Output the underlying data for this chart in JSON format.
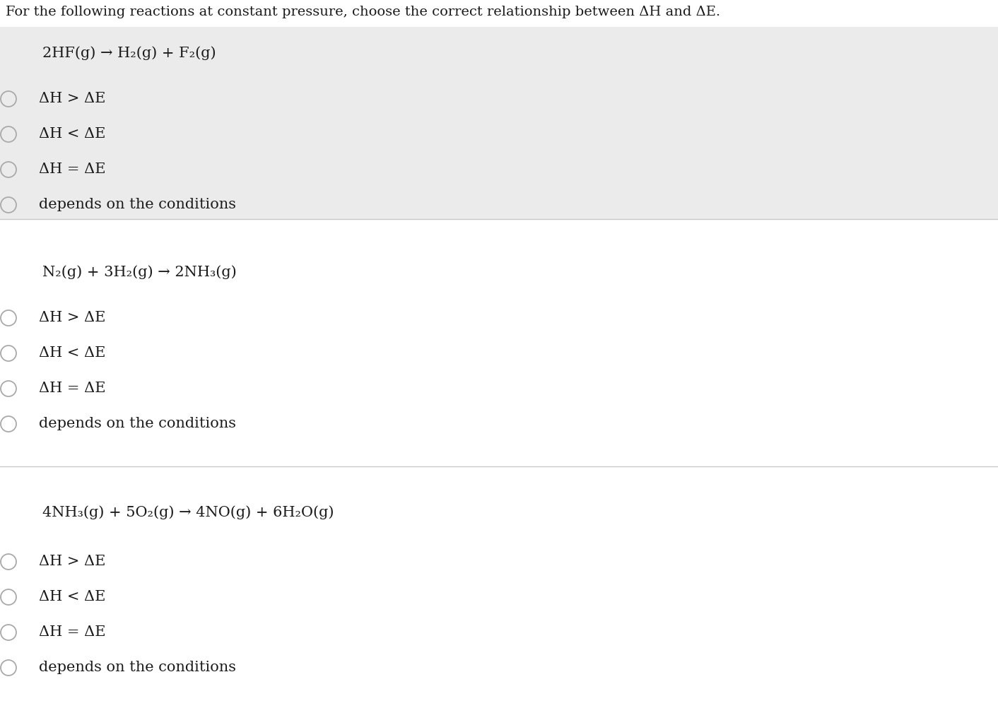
{
  "title": "For the following reactions at constant pressure, choose the correct relationship between ΔH and ΔE.",
  "title_fontsize": 14,
  "bg_white": "#ffffff",
  "bg_gray": "#ebebeb",
  "text_color": "#1a1a1a",
  "separator_color": "#cccccc",
  "circle_color": "#aaaaaa",
  "reactions": [
    {
      "equation": "2HF(g) → H₂(g) + F₂(g)",
      "options": [
        "ΔH > ΔE",
        "ΔH < ΔE",
        "ΔH = ΔE",
        "depends on the conditions"
      ],
      "bg": "#ebebeb"
    },
    {
      "equation": "N₂(g) + 3H₂(g) → 2NH₃(g)",
      "options": [
        "ΔH > ΔE",
        "ΔH < ΔE",
        "ΔH = ΔE",
        "depends on the conditions"
      ],
      "bg": "#ffffff"
    },
    {
      "equation": "4NH₃(g) + 5O₂(g) → 4NO(g) + 6H₂O(g)",
      "options": [
        "ΔH > ΔE",
        "ΔH < ΔE",
        "ΔH = ΔE",
        "depends on the conditions"
      ],
      "bg": "#ffffff"
    }
  ],
  "font_family": "DejaVu Serif",
  "font_size_eq": 15,
  "font_size_opt": 15,
  "font_size_title": 14
}
